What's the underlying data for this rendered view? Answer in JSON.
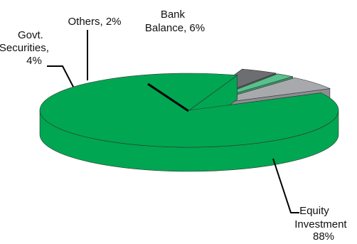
{
  "chart_data": {
    "type": "pie",
    "style": "3d-exploded",
    "slices": [
      {
        "label": "Equity Investment",
        "value": 88,
        "value_text": "88%",
        "color": "#00a651",
        "side_color": "#00a651"
      },
      {
        "label": "Govt. Securities",
        "value": 4,
        "value_text": "4%",
        "color": "#6d6e71",
        "side_color": "#58595b"
      },
      {
        "label": "Others",
        "value": 2,
        "value_text": "2%",
        "color": "#57c18c",
        "side_color": "#3a9b6b"
      },
      {
        "label": "Bank Balance",
        "value": 6,
        "value_text": "6%",
        "color": "#a7a9ac",
        "side_color": "#8c8e91"
      }
    ],
    "labels": {
      "equity": [
        "Equity",
        "Investment",
        "88%"
      ],
      "govt": [
        "Govt.",
        "Securities,",
        "4%"
      ],
      "others": [
        "Others, 2%"
      ],
      "bank": [
        "Bank",
        "Balance, 6%"
      ]
    }
  }
}
